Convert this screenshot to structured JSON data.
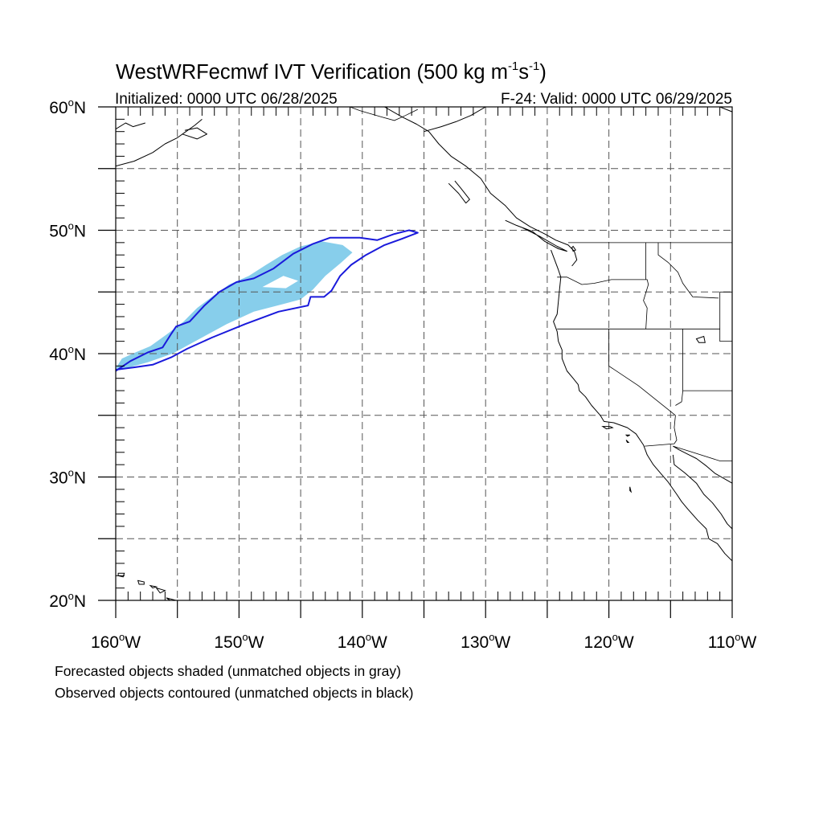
{
  "title": {
    "main": "WestWRFecmwf IVT Verification (500 kg m",
    "sup1": "-1",
    "mid": "s",
    "sup2": "-1",
    "end": ")"
  },
  "subtitle_left": "Initialized: 0000 UTC 06/28/2025",
  "subtitle_right": "F-24: Valid: 0000 UTC 06/29/2025",
  "map": {
    "lon_range": [
      -160,
      -110
    ],
    "lat_range": [
      20,
      60
    ],
    "grid_lons": [
      -155,
      -150,
      -145,
      -140,
      -135,
      -130,
      -125,
      -120,
      -115
    ],
    "grid_lats": [
      25,
      30,
      35,
      40,
      45,
      50,
      55
    ],
    "lon_labels": [
      {
        "lon": -160,
        "deg": "160",
        "hem": "W"
      },
      {
        "lon": -150,
        "deg": "150",
        "hem": "W"
      },
      {
        "lon": -140,
        "deg": "140",
        "hem": "W"
      },
      {
        "lon": -130,
        "deg": "130",
        "hem": "W"
      },
      {
        "lon": -120,
        "deg": "120",
        "hem": "W"
      },
      {
        "lon": -110,
        "deg": "110",
        "hem": "W"
      }
    ],
    "lat_labels": [
      {
        "lat": 60,
        "deg": "60",
        "hem": "N"
      },
      {
        "lat": 50,
        "deg": "50",
        "hem": "N"
      },
      {
        "lat": 40,
        "deg": "40",
        "hem": "N"
      },
      {
        "lat": 30,
        "deg": "30",
        "hem": "N"
      },
      {
        "lat": 20,
        "deg": "20",
        "hem": "N"
      }
    ],
    "colors": {
      "forecast_fill": "#87ceeb",
      "observed_contour": "#1a1adb",
      "coastline": "#000000",
      "grid": "#555555"
    },
    "forecast_object": [
      [
        -160,
        38.8
      ],
      [
        -159.5,
        39.6
      ],
      [
        -158.4,
        40.1
      ],
      [
        -157.2,
        40.6
      ],
      [
        -155.8,
        41.6
      ],
      [
        -154.5,
        42.6
      ],
      [
        -153.4,
        43.7
      ],
      [
        -152.2,
        44.6
      ],
      [
        -150.8,
        45.6
      ],
      [
        -149.2,
        46.3
      ],
      [
        -147.8,
        47.2
      ],
      [
        -146.5,
        48.0
      ],
      [
        -145.0,
        48.7
      ],
      [
        -143.3,
        49.1
      ],
      [
        -141.6,
        48.8
      ],
      [
        -140.8,
        48.2
      ],
      [
        -141.8,
        47.3
      ],
      [
        -143.0,
        46.3
      ],
      [
        -144.0,
        45.2
      ],
      [
        -145.0,
        44.4
      ],
      [
        -146.5,
        44.0
      ],
      [
        -148.8,
        43.4
      ],
      [
        -151.0,
        42.4
      ],
      [
        -153.2,
        41.2
      ],
      [
        -155.4,
        40.0
      ],
      [
        -157.4,
        39.3
      ],
      [
        -159.2,
        38.8
      ]
    ],
    "forecast_gap": [
      [
        -148.1,
        45.4
      ],
      [
        -146.4,
        46.3
      ],
      [
        -145.2,
        45.9
      ],
      [
        -146.2,
        45.3
      ]
    ],
    "observed_object": [
      [
        -160,
        38.6
      ],
      [
        -158.8,
        39.4
      ],
      [
        -157.4,
        40.1
      ],
      [
        -156.2,
        40.5
      ],
      [
        -155.5,
        41.6
      ],
      [
        -155.1,
        42.2
      ],
      [
        -154.0,
        42.6
      ],
      [
        -152.8,
        43.9
      ],
      [
        -151.6,
        45.0
      ],
      [
        -150.2,
        45.8
      ],
      [
        -148.8,
        46.1
      ],
      [
        -147.2,
        46.9
      ],
      [
        -145.6,
        48.1
      ],
      [
        -144.0,
        48.9
      ],
      [
        -142.6,
        49.4
      ],
      [
        -140.2,
        49.4
      ],
      [
        -138.8,
        49.2
      ],
      [
        -137.4,
        49.7
      ],
      [
        -136.2,
        50.0
      ],
      [
        -135.5,
        49.8
      ],
      [
        -136.8,
        49.3
      ],
      [
        -138.2,
        48.8
      ],
      [
        -139.7,
        48.0
      ],
      [
        -140.9,
        47.2
      ],
      [
        -141.8,
        46.3
      ],
      [
        -142.5,
        45.1
      ],
      [
        -143.1,
        44.6
      ],
      [
        -144.2,
        44.6
      ],
      [
        -144.4,
        43.9
      ],
      [
        -146.8,
        43.4
      ],
      [
        -149.5,
        42.4
      ],
      [
        -152.2,
        41.3
      ],
      [
        -154.2,
        40.4
      ],
      [
        -155.5,
        39.7
      ],
      [
        -157.0,
        39.1
      ],
      [
        -158.4,
        38.9
      ],
      [
        -160,
        38.7
      ]
    ],
    "coastlines": [
      [
        [
          -120.0,
          60.0
        ],
        [
          -110.0,
          60.0
        ]
      ],
      [
        [
          -135.0,
          58.0
        ],
        [
          -133.6,
          58.4
        ],
        [
          -132.4,
          58.8
        ],
        [
          -131.2,
          59.3
        ],
        [
          -130.0,
          60.0
        ]
      ],
      [
        [
          -138.2,
          60.0
        ],
        [
          -136.8,
          59.2
        ],
        [
          -135.6,
          58.6
        ],
        [
          -134.6,
          58.0
        ],
        [
          -133.8,
          57.0
        ],
        [
          -132.8,
          56.0
        ],
        [
          -131.6,
          55.2
        ],
        [
          -130.4,
          54.2
        ],
        [
          -129.6,
          53.0
        ],
        [
          -128.4,
          52.0
        ],
        [
          -127.5,
          51.0
        ],
        [
          -126.4,
          50.3
        ],
        [
          -125.2,
          49.7
        ],
        [
          -124.3,
          49.2
        ],
        [
          -123.3,
          48.8
        ],
        [
          -122.8,
          48.3
        ],
        [
          -122.6,
          47.6
        ],
        [
          -123.0,
          47.1
        ]
      ],
      [
        [
          -128.4,
          50.8
        ],
        [
          -127.5,
          50.4
        ],
        [
          -126.2,
          49.9
        ],
        [
          -125.2,
          49.1
        ],
        [
          -124.1,
          48.5
        ],
        [
          -123.4,
          48.3
        ],
        [
          -124.2,
          48.7
        ],
        [
          -125.6,
          49.5
        ],
        [
          -127.0,
          50.2
        ]
      ],
      [
        [
          -132.5,
          54.0
        ],
        [
          -132.0,
          53.4
        ],
        [
          -131.3,
          52.5
        ],
        [
          -131.6,
          52.2
        ],
        [
          -132.2,
          53.0
        ],
        [
          -133.0,
          53.8
        ]
      ],
      [
        [
          -124.7,
          48.4
        ],
        [
          -124.4,
          47.6
        ],
        [
          -124.1,
          46.8
        ],
        [
          -123.9,
          46.2
        ],
        [
          -124.0,
          45.2
        ],
        [
          -124.1,
          44.2
        ],
        [
          -124.2,
          43.2
        ],
        [
          -124.5,
          42.6
        ],
        [
          -124.2,
          41.8
        ],
        [
          -124.1,
          41.0
        ],
        [
          -123.8,
          40.3
        ],
        [
          -123.8,
          39.6
        ],
        [
          -123.4,
          38.6
        ],
        [
          -122.9,
          38.0
        ],
        [
          -122.5,
          37.5
        ],
        [
          -122.4,
          37.0
        ],
        [
          -121.9,
          36.5
        ],
        [
          -121.4,
          35.8
        ],
        [
          -120.7,
          35.0
        ],
        [
          -120.4,
          34.5
        ],
        [
          -119.6,
          34.4
        ],
        [
          -118.5,
          34.0
        ],
        [
          -117.8,
          33.5
        ],
        [
          -117.2,
          32.6
        ],
        [
          -116.9,
          31.8
        ],
        [
          -116.4,
          31.0
        ],
        [
          -115.8,
          30.3
        ],
        [
          -115.2,
          29.6
        ],
        [
          -114.5,
          28.6
        ],
        [
          -114.1,
          28.0
        ],
        [
          -113.6,
          27.4
        ],
        [
          -112.8,
          26.5
        ],
        [
          -112.1,
          25.8
        ],
        [
          -111.9,
          25.0
        ],
        [
          -111.2,
          24.6
        ],
        [
          -110.6,
          23.8
        ],
        [
          -110.0,
          23.2
        ]
      ],
      [
        [
          -114.8,
          31.8
        ],
        [
          -114.7,
          31.0
        ],
        [
          -113.8,
          30.3
        ],
        [
          -112.9,
          29.5
        ],
        [
          -112.3,
          28.6
        ],
        [
          -111.6,
          27.9
        ],
        [
          -110.9,
          27.0
        ],
        [
          -110.4,
          26.2
        ],
        [
          -110.0,
          25.8
        ]
      ],
      [
        [
          -114.8,
          32.5
        ],
        [
          -114.3,
          32.2
        ],
        [
          -113.5,
          31.8
        ],
        [
          -112.9,
          31.5
        ],
        [
          -112.1,
          30.9
        ],
        [
          -111.4,
          30.3
        ],
        [
          -110.0,
          29.5
        ]
      ],
      [
        [
          -160.0,
          55.2
        ],
        [
          -158.5,
          55.6
        ],
        [
          -157.0,
          56.3
        ],
        [
          -156.0,
          57.0
        ],
        [
          -155.0,
          57.5
        ],
        [
          -154.3,
          58.0
        ],
        [
          -153.6,
          58.5
        ],
        [
          -153.0,
          59.0
        ]
      ],
      [
        [
          -160.0,
          58.2
        ],
        [
          -159.2,
          58.7
        ],
        [
          -158.6,
          58.4
        ],
        [
          -157.6,
          58.7
        ]
      ],
      [
        [
          -154.6,
          57.8
        ],
        [
          -153.4,
          57.4
        ],
        [
          -152.6,
          57.8
        ],
        [
          -153.4,
          58.3
        ],
        [
          -154.4,
          58.1
        ]
      ],
      [
        [
          -111.0,
          60.0
        ],
        [
          -110.0,
          59.6
        ]
      ]
    ],
    "borders": [
      [
        [
          -141.0,
          60.0
        ],
        [
          -140.2,
          59.7
        ],
        [
          -138.5,
          59.2
        ],
        [
          -137.4,
          58.9
        ],
        [
          -136.5,
          59.3
        ],
        [
          -135.5,
          59.8
        ]
      ],
      [
        [
          -123.3,
          49.0
        ],
        [
          -110.0,
          49.0
        ]
      ],
      [
        [
          -124.2,
          46.2
        ],
        [
          -123.4,
          46.2
        ],
        [
          -122.2,
          45.6
        ],
        [
          -121.2,
          45.7
        ],
        [
          -119.8,
          46.0
        ],
        [
          -118.9,
          46.0
        ],
        [
          -116.9,
          46.0
        ],
        [
          -116.8,
          45.6
        ],
        [
          -117.2,
          44.3
        ],
        [
          -116.9,
          43.7
        ],
        [
          -117.0,
          42.0
        ]
      ],
      [
        [
          -124.2,
          42.0
        ],
        [
          -111.0,
          42.0
        ]
      ],
      [
        [
          -117.0,
          49.0
        ],
        [
          -117.0,
          46.0
        ]
      ],
      [
        [
          -116.0,
          49.0
        ],
        [
          -116.0,
          48.0
        ],
        [
          -115.2,
          47.4
        ],
        [
          -114.4,
          46.6
        ],
        [
          -114.0,
          45.7
        ],
        [
          -113.2,
          44.6
        ],
        [
          -111.1,
          44.5
        ]
      ],
      [
        [
          -111.0,
          45.0
        ],
        [
          -110.0,
          45.0
        ]
      ],
      [
        [
          -111.0,
          45.0
        ],
        [
          -111.0,
          41.0
        ],
        [
          -110.0,
          41.0
        ]
      ],
      [
        [
          -120.0,
          42.0
        ],
        [
          -120.0,
          39.0
        ],
        [
          -117.6,
          37.4
        ],
        [
          -114.6,
          35.0
        ]
      ],
      [
        [
          -114.0,
          42.0
        ],
        [
          -114.0,
          37.0
        ],
        [
          -114.1,
          36.1
        ],
        [
          -114.6,
          35.8
        ]
      ],
      [
        [
          -114.0,
          37.0
        ],
        [
          -110.0,
          37.0
        ]
      ],
      [
        [
          -114.6,
          35.0
        ],
        [
          -114.7,
          34.0
        ],
        [
          -114.5,
          33.0
        ],
        [
          -114.7,
          32.7
        ],
        [
          -117.1,
          32.5
        ]
      ],
      [
        [
          -114.8,
          32.5
        ],
        [
          -113.2,
          32.0
        ],
        [
          -111.0,
          31.3
        ],
        [
          -110.0,
          31.3
        ]
      ]
    ],
    "islands": [
      [
        [
          -159.8,
          22.2
        ],
        [
          -159.3,
          22.2
        ],
        [
          -159.4,
          21.9
        ],
        [
          -159.8,
          22.0
        ],
        [
          -159.8,
          22.2
        ]
      ],
      [
        [
          -158.2,
          21.6
        ],
        [
          -157.7,
          21.5
        ],
        [
          -157.7,
          21.3
        ],
        [
          -158.1,
          21.3
        ],
        [
          -158.2,
          21.6
        ]
      ],
      [
        [
          -157.2,
          21.2
        ],
        [
          -156.7,
          21.1
        ],
        [
          -157.0,
          21.0
        ],
        [
          -157.2,
          21.2
        ]
      ],
      [
        [
          -156.7,
          21.0
        ],
        [
          -156.0,
          20.8
        ],
        [
          -156.4,
          20.6
        ],
        [
          -156.7,
          21.0
        ]
      ],
      [
        [
          -155.9,
          20.2
        ],
        [
          -155.1,
          20.0
        ],
        [
          -155.0,
          19.8
        ],
        [
          -155.6,
          20.0
        ]
      ],
      [
        [
          -120.5,
          34.1
        ],
        [
          -119.9,
          34.1
        ],
        [
          -119.7,
          34.0
        ],
        [
          -120.2,
          33.9
        ],
        [
          -120.5,
          34.1
        ]
      ],
      [
        [
          -118.6,
          33.4
        ],
        [
          -118.3,
          33.4
        ],
        [
          -118.5,
          33.3
        ],
        [
          -118.6,
          33.4
        ]
      ],
      [
        [
          -118.6,
          33.0
        ],
        [
          -118.4,
          32.8
        ],
        [
          -118.5,
          32.8
        ],
        [
          -118.6,
          33.0
        ]
      ],
      [
        [
          -118.3,
          29.2
        ],
        [
          -118.2,
          28.8
        ],
        [
          -118.3,
          28.9
        ],
        [
          -118.3,
          29.2
        ]
      ],
      [
        [
          -112.9,
          41.2
        ],
        [
          -112.3,
          41.4
        ],
        [
          -112.2,
          40.9
        ],
        [
          -112.7,
          40.9
        ],
        [
          -112.9,
          41.2
        ]
      ],
      [
        [
          -122.9,
          48.7
        ],
        [
          -122.7,
          48.4
        ],
        [
          -122.9,
          48.3
        ],
        [
          -123.0,
          48.6
        ],
        [
          -122.9,
          48.7
        ]
      ]
    ]
  },
  "captions": [
    "Forecasted objects shaded (unmatched objects in gray)",
    "Observed objects contoured (unmatched objects in black)"
  ]
}
